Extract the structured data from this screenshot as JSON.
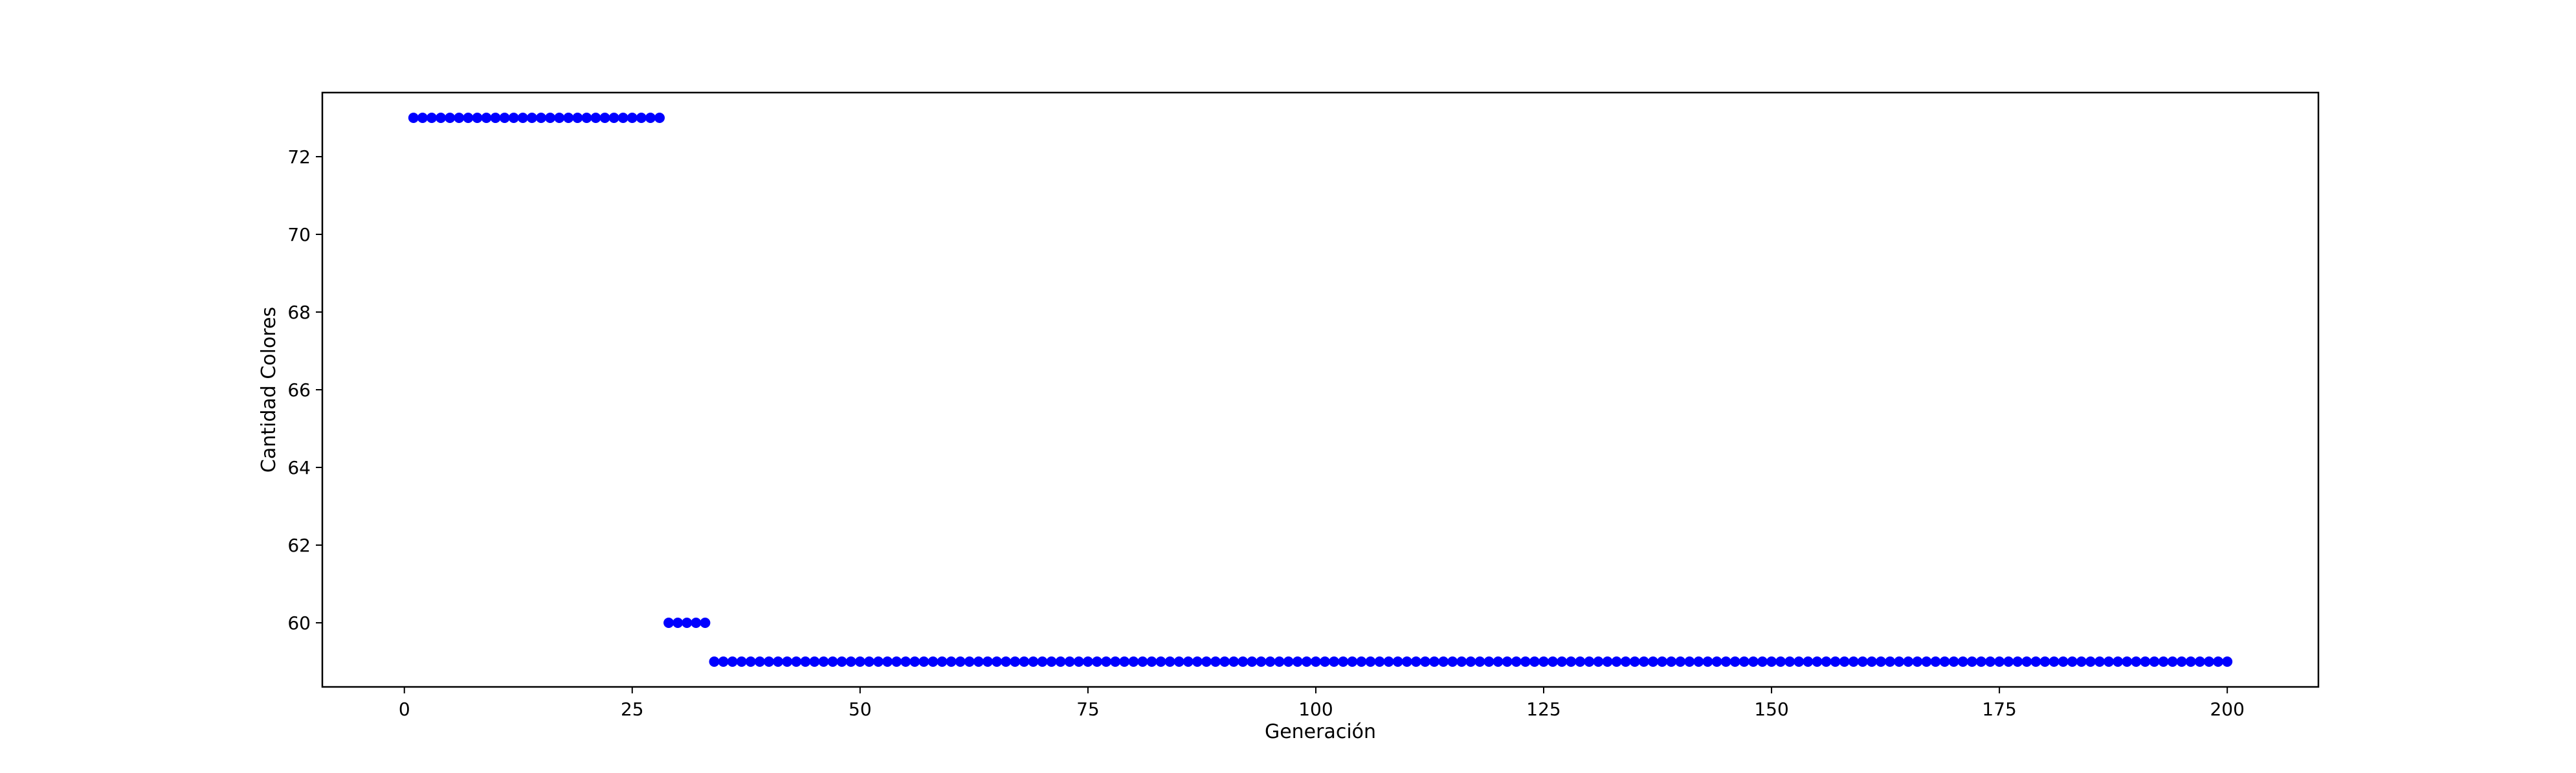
{
  "chart_data": {
    "type": "scatter",
    "xlabel": "Generación",
    "ylabel": "Cantidad Colores",
    "xlim": [
      -9,
      210
    ],
    "ylim": [
      58.35,
      73.65
    ],
    "xticks": [
      0,
      25,
      50,
      75,
      100,
      125,
      150,
      175,
      200
    ],
    "yticks": [
      60,
      62,
      64,
      66,
      68,
      70,
      72
    ],
    "grid": false,
    "marker_color": "#0000ff",
    "series": [
      {
        "segments": [
          {
            "x_from": 1,
            "x_to": 28,
            "y": 73
          },
          {
            "x_from": 29,
            "x_to": 33,
            "y": 60
          },
          {
            "x_from": 34,
            "x_to": 200,
            "y": 59
          }
        ]
      }
    ]
  }
}
